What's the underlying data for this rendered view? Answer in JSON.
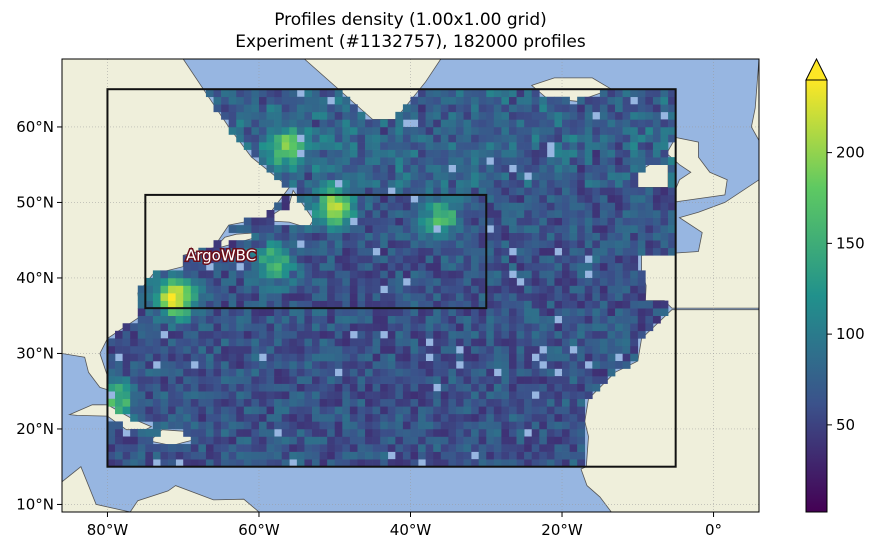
{
  "title": {
    "line1": "Profiles density (1.00x1.00 grid)",
    "line2": "Experiment (#1132757), 182000 profiles"
  },
  "map": {
    "lon_range": [
      -86,
      6
    ],
    "lat_range": [
      9,
      69
    ],
    "ocean_color": "#97b6e1",
    "land_color": "#efefdb",
    "coast_color": "#555555",
    "x_ticks": [
      {
        "lon": -80,
        "label": "80°W"
      },
      {
        "lon": -60,
        "label": "60°W"
      },
      {
        "lon": -40,
        "label": "40°W"
      },
      {
        "lon": -20,
        "label": "20°W"
      },
      {
        "lon": 0,
        "label": "0°"
      }
    ],
    "y_ticks": [
      {
        "lat": 60,
        "label": "60°N"
      },
      {
        "lat": 50,
        "label": "50°N"
      },
      {
        "lat": 40,
        "label": "40°N"
      },
      {
        "lat": 30,
        "label": "30°N"
      },
      {
        "lat": 20,
        "label": "20°N"
      },
      {
        "lat": 10,
        "label": "10°N"
      }
    ],
    "boxes": [
      {
        "name": "outer-domain",
        "lon": [
          -80,
          -5
        ],
        "lat": [
          15,
          65
        ],
        "label": ""
      },
      {
        "name": "argowbc",
        "lon": [
          -75,
          -30
        ],
        "lat": [
          36,
          51
        ],
        "label": "ArgoWBC",
        "label_at": [
          -65,
          43
        ]
      }
    ],
    "hotspots": [
      {
        "lon": -71,
        "lat": 37.5,
        "v": 240
      },
      {
        "lon": -50,
        "lat": 49.5,
        "v": 215
      },
      {
        "lon": -56,
        "lat": 57.5,
        "v": 175
      },
      {
        "lon": -36,
        "lat": 48,
        "v": 160
      },
      {
        "lon": -58,
        "lat": 42,
        "v": 160
      },
      {
        "lon": -79,
        "lat": 24,
        "v": 170
      }
    ]
  },
  "colorbar": {
    "colormap": "viridis",
    "colors": [
      "#440154",
      "#3b528b",
      "#21918c",
      "#5ec962",
      "#fde725"
    ],
    "range": [
      2,
      240
    ],
    "extend": "max",
    "ticks": [
      {
        "value": 50,
        "label": "50"
      },
      {
        "value": 100,
        "label": "100"
      },
      {
        "value": 150,
        "label": "150"
      },
      {
        "value": 200,
        "label": "200"
      }
    ]
  }
}
